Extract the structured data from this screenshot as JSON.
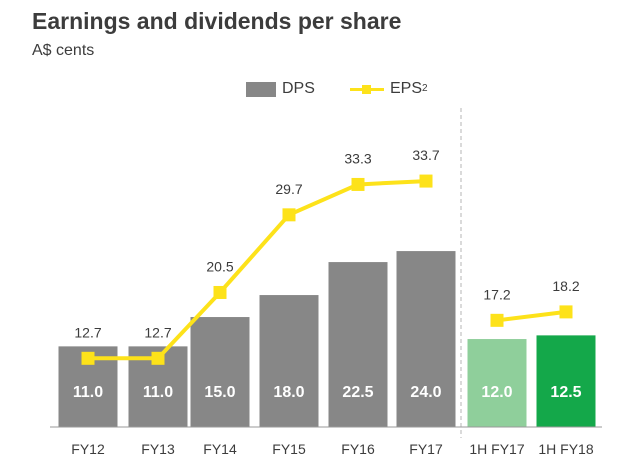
{
  "title": "Earnings and dividends per share",
  "subtitle": "A$ cents",
  "legend": {
    "dps": "DPS",
    "eps": "EPS",
    "eps_sup": "2"
  },
  "colors": {
    "bar_grey": "#878787",
    "bar_half1": "#8fcf9b",
    "bar_half2": "#14a84a",
    "eps_line": "#fde21a",
    "text": "#3c3c3c",
    "divider": "#b4b4b4"
  },
  "chart_data": {
    "type": "bar",
    "title": "Earnings and dividends per share",
    "ylabel": "A$ cents",
    "categories": [
      "FY12",
      "FY13",
      "FY14",
      "FY15",
      "FY16",
      "FY17",
      "1H FY17",
      "1H FY18"
    ],
    "series": [
      {
        "name": "DPS",
        "kind": "bar",
        "values": [
          11.0,
          11.0,
          15.0,
          18.0,
          22.5,
          24.0,
          12.0,
          12.5
        ],
        "labels": [
          "11.0",
          "11.0",
          "15.0",
          "18.0",
          "22.5",
          "24.0",
          "12.0",
          "12.5"
        ]
      },
      {
        "name": "EPS",
        "kind": "line",
        "values": [
          12.7,
          12.7,
          20.5,
          29.7,
          33.3,
          33.7,
          17.2,
          18.2
        ],
        "labels": [
          "12.7",
          "12.7",
          "20.5",
          "29.7",
          "33.3",
          "33.7",
          "17.2",
          "18.2"
        ]
      }
    ],
    "groups": [
      {
        "categories": [
          "FY12",
          "FY13",
          "FY14",
          "FY15",
          "FY16",
          "FY17"
        ]
      },
      {
        "categories": [
          "1H FY17",
          "1H FY18"
        ]
      }
    ],
    "grid": false,
    "legend_position": "top-right"
  }
}
